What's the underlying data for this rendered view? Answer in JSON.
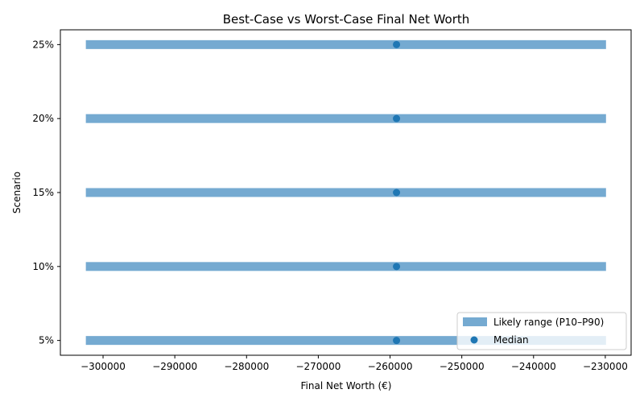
{
  "chart_data": {
    "type": "range",
    "title": "Best-Case vs Worst-Case Final Net Worth",
    "xlabel": "Final Net Worth (€)",
    "ylabel": "Scenario",
    "categories": [
      "5%",
      "10%",
      "15%",
      "20%",
      "25%"
    ],
    "series": [
      {
        "name": "Likely range (P10–P90)",
        "type": "range",
        "low": [
          -302400,
          -302400,
          -302400,
          -302400,
          -302400
        ],
        "high": [
          -229900,
          -229900,
          -229900,
          -229900,
          -229900
        ],
        "color": "#75aad1"
      },
      {
        "name": "Median",
        "type": "scatter",
        "values": [
          -259100,
          -259100,
          -259100,
          -259100,
          -259100
        ],
        "color": "#1f77b4"
      }
    ],
    "xlim": [
      -305950,
      -226400
    ],
    "ylim": [
      -0.2,
      4.2
    ],
    "xticks": [
      -300000,
      -290000,
      -280000,
      -270000,
      -260000,
      -250000,
      -240000,
      -230000
    ],
    "xtick_labels": [
      "−300000",
      "−290000",
      "−280000",
      "−270000",
      "−260000",
      "−250000",
      "−240000",
      "−230000"
    ],
    "grid": false,
    "legend_position": "bottom-right"
  }
}
